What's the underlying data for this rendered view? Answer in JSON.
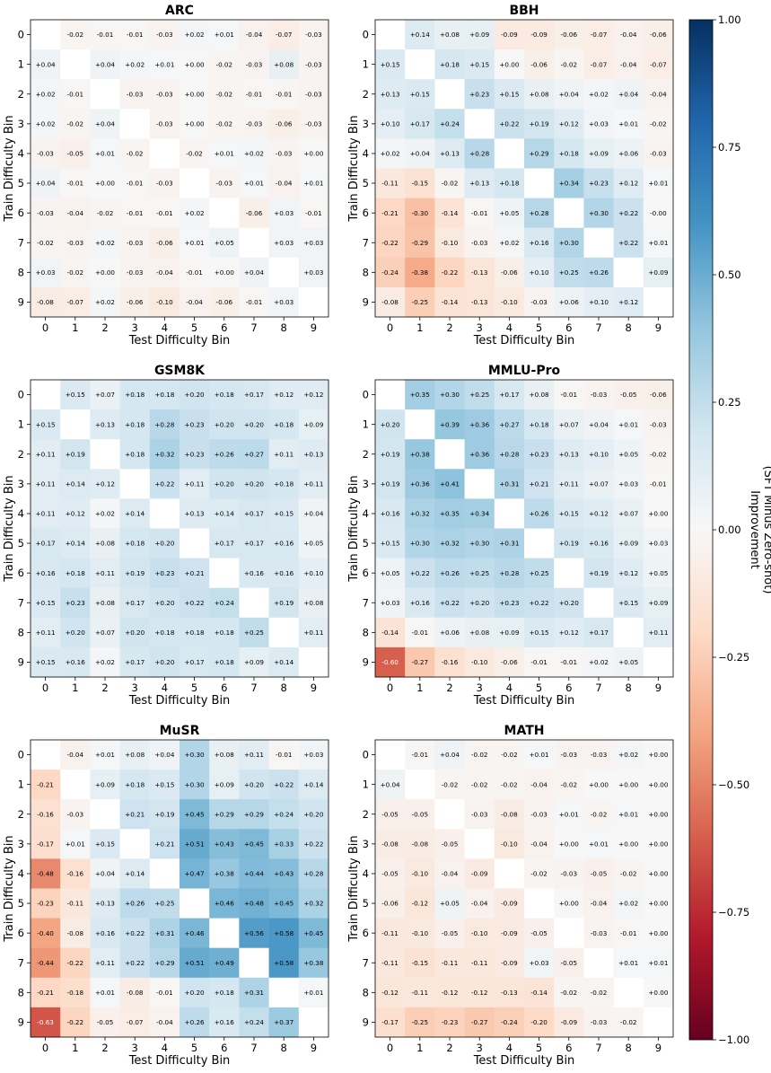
{
  "chart_data": [
    {
      "type": "heatmap",
      "title": "ARC",
      "xlabel": "Test Difficulty Bin",
      "ylabel": "Train Difficulty Bin",
      "x_ticks": [
        "0",
        "1",
        "2",
        "3",
        "4",
        "5",
        "6",
        "7",
        "8",
        "9"
      ],
      "y_ticks": [
        "0",
        "1",
        "2",
        "3",
        "4",
        "5",
        "6",
        "7",
        "8",
        "9"
      ],
      "values": [
        [
          null,
          -0.02,
          -0.01,
          -0.01,
          -0.03,
          0.02,
          0.01,
          -0.04,
          -0.07,
          -0.03
        ],
        [
          0.04,
          null,
          0.04,
          0.02,
          0.01,
          0.0,
          -0.02,
          -0.03,
          0.08,
          -0.03
        ],
        [
          0.02,
          -0.01,
          null,
          -0.03,
          -0.03,
          0.0,
          -0.02,
          -0.01,
          -0.01,
          -0.03
        ],
        [
          0.02,
          -0.02,
          0.04,
          null,
          -0.03,
          0.0,
          -0.02,
          -0.03,
          -0.06,
          -0.03
        ],
        [
          -0.03,
          -0.05,
          0.01,
          -0.02,
          null,
          -0.02,
          0.01,
          0.02,
          -0.03,
          0.0
        ],
        [
          0.04,
          -0.01,
          0.0,
          -0.01,
          -0.03,
          null,
          -0.03,
          0.01,
          -0.04,
          0.01
        ],
        [
          -0.03,
          -0.04,
          -0.02,
          -0.01,
          -0.01,
          0.02,
          null,
          -0.06,
          0.03,
          -0.01
        ],
        [
          -0.02,
          -0.03,
          0.02,
          -0.03,
          -0.06,
          0.01,
          0.05,
          null,
          0.03,
          0.03
        ],
        [
          0.03,
          -0.02,
          0.0,
          -0.03,
          -0.04,
          -0.01,
          0.0,
          0.04,
          null,
          0.03
        ],
        [
          -0.08,
          -0.07,
          0.02,
          -0.06,
          -0.1,
          -0.04,
          -0.06,
          -0.01,
          0.03,
          null
        ]
      ]
    },
    {
      "type": "heatmap",
      "title": "BBH",
      "xlabel": "Test Difficulty Bin",
      "ylabel": "Train Difficulty Bin",
      "x_ticks": [
        "0",
        "1",
        "2",
        "3",
        "4",
        "5",
        "6",
        "7",
        "8",
        "9"
      ],
      "y_ticks": [
        "0",
        "1",
        "2",
        "3",
        "4",
        "5",
        "6",
        "7",
        "8",
        "9"
      ],
      "values": [
        [
          null,
          0.14,
          0.08,
          0.09,
          -0.09,
          -0.09,
          -0.06,
          -0.07,
          -0.04,
          -0.06
        ],
        [
          0.15,
          null,
          0.18,
          0.15,
          0.0,
          -0.06,
          -0.02,
          -0.07,
          -0.04,
          -0.07
        ],
        [
          0.13,
          0.15,
          null,
          0.23,
          0.15,
          0.08,
          0.04,
          0.02,
          0.04,
          -0.04
        ],
        [
          0.1,
          0.17,
          0.24,
          null,
          0.22,
          0.19,
          0.12,
          0.03,
          0.01,
          -0.02
        ],
        [
          0.02,
          0.04,
          0.13,
          0.28,
          null,
          0.29,
          0.18,
          0.09,
          0.06,
          -0.03
        ],
        [
          -0.11,
          -0.15,
          -0.02,
          0.13,
          0.18,
          null,
          0.34,
          0.23,
          0.12,
          0.01
        ],
        [
          -0.21,
          -0.3,
          -0.14,
          -0.01,
          0.05,
          0.28,
          null,
          0.3,
          0.22,
          -0.0
        ],
        [
          -0.22,
          -0.29,
          -0.1,
          -0.03,
          0.02,
          0.16,
          0.3,
          null,
          0.22,
          0.01
        ],
        [
          -0.24,
          -0.38,
          -0.22,
          -0.13,
          -0.06,
          0.1,
          0.25,
          0.26,
          null,
          0.09
        ],
        [
          -0.08,
          -0.25,
          -0.14,
          -0.13,
          -0.1,
          -0.03,
          0.06,
          0.1,
          0.12,
          null
        ]
      ]
    },
    {
      "type": "heatmap",
      "title": "GSM8K",
      "xlabel": "Test Difficulty Bin",
      "ylabel": "Train Difficulty Bin",
      "x_ticks": [
        "0",
        "1",
        "2",
        "3",
        "4",
        "5",
        "6",
        "7",
        "8",
        "9"
      ],
      "y_ticks": [
        "0",
        "1",
        "2",
        "3",
        "4",
        "5",
        "6",
        "7",
        "8",
        "9"
      ],
      "values": [
        [
          null,
          0.15,
          0.07,
          0.18,
          0.18,
          0.2,
          0.18,
          0.17,
          0.12,
          0.12
        ],
        [
          0.15,
          null,
          0.13,
          0.18,
          0.28,
          0.23,
          0.2,
          0.2,
          0.18,
          0.09
        ],
        [
          0.11,
          0.19,
          null,
          0.18,
          0.32,
          0.23,
          0.26,
          0.27,
          0.11,
          0.13
        ],
        [
          0.11,
          0.14,
          0.12,
          null,
          0.22,
          0.11,
          0.2,
          0.2,
          0.18,
          0.11
        ],
        [
          0.11,
          0.12,
          0.02,
          0.14,
          null,
          0.13,
          0.14,
          0.17,
          0.15,
          0.04
        ],
        [
          0.17,
          0.14,
          0.08,
          0.18,
          0.2,
          null,
          0.17,
          0.17,
          0.16,
          0.05
        ],
        [
          0.16,
          0.18,
          0.11,
          0.19,
          0.23,
          0.21,
          null,
          0.16,
          0.16,
          0.1
        ],
        [
          0.15,
          0.23,
          0.08,
          0.17,
          0.2,
          0.22,
          0.24,
          null,
          0.19,
          0.08
        ],
        [
          0.11,
          0.2,
          0.07,
          0.2,
          0.18,
          0.18,
          0.18,
          0.25,
          null,
          0.11
        ],
        [
          0.15,
          0.16,
          0.02,
          0.17,
          0.2,
          0.17,
          0.18,
          0.09,
          0.14,
          null
        ]
      ]
    },
    {
      "type": "heatmap",
      "title": "MMLU-Pro",
      "xlabel": "Test Difficulty Bin",
      "ylabel": "Train Difficulty Bin",
      "x_ticks": [
        "0",
        "1",
        "2",
        "3",
        "4",
        "5",
        "6",
        "7",
        "8",
        "9"
      ],
      "y_ticks": [
        "0",
        "1",
        "2",
        "3",
        "4",
        "5",
        "6",
        "7",
        "8",
        "9"
      ],
      "values": [
        [
          null,
          0.35,
          0.3,
          0.25,
          0.17,
          0.08,
          -0.01,
          -0.03,
          -0.05,
          -0.06
        ],
        [
          0.2,
          null,
          0.39,
          0.36,
          0.27,
          0.18,
          0.07,
          0.04,
          0.01,
          -0.03
        ],
        [
          0.19,
          0.38,
          null,
          0.36,
          0.28,
          0.23,
          0.13,
          0.1,
          0.05,
          -0.02
        ],
        [
          0.19,
          0.36,
          0.41,
          null,
          0.31,
          0.21,
          0.11,
          0.07,
          0.03,
          -0.01
        ],
        [
          0.16,
          0.32,
          0.35,
          0.34,
          null,
          0.26,
          0.15,
          0.12,
          0.07,
          0.0
        ],
        [
          0.15,
          0.3,
          0.32,
          0.3,
          0.31,
          null,
          0.19,
          0.16,
          0.09,
          0.03
        ],
        [
          0.05,
          0.22,
          0.26,
          0.25,
          0.28,
          0.25,
          null,
          0.19,
          0.12,
          0.05
        ],
        [
          0.03,
          0.16,
          0.22,
          0.2,
          0.23,
          0.22,
          0.2,
          null,
          0.15,
          0.09
        ],
        [
          -0.14,
          -0.01,
          0.06,
          0.08,
          0.09,
          0.15,
          0.12,
          0.17,
          null,
          0.11
        ],
        [
          -0.6,
          -0.27,
          -0.16,
          -0.1,
          -0.06,
          -0.01,
          -0.01,
          0.02,
          0.05,
          null
        ]
      ]
    },
    {
      "type": "heatmap",
      "title": "MuSR",
      "xlabel": "Test Difficulty Bin",
      "ylabel": "Train Difficulty Bin",
      "x_ticks": [
        "0",
        "1",
        "2",
        "3",
        "4",
        "5",
        "6",
        "7",
        "8",
        "9"
      ],
      "y_ticks": [
        "0",
        "1",
        "2",
        "3",
        "4",
        "5",
        "6",
        "7",
        "8",
        "9"
      ],
      "values": [
        [
          null,
          -0.04,
          0.01,
          0.08,
          0.04,
          0.3,
          0.08,
          0.11,
          -0.01,
          0.03
        ],
        [
          -0.21,
          null,
          0.09,
          0.18,
          0.15,
          0.3,
          0.09,
          0.2,
          0.22,
          0.14
        ],
        [
          -0.16,
          -0.03,
          null,
          0.21,
          0.19,
          0.45,
          0.29,
          0.29,
          0.24,
          0.2
        ],
        [
          -0.17,
          0.01,
          0.15,
          null,
          0.21,
          0.51,
          0.43,
          0.45,
          0.33,
          0.22
        ],
        [
          -0.48,
          -0.16,
          0.04,
          0.14,
          null,
          0.47,
          0.38,
          0.44,
          0.43,
          0.28
        ],
        [
          -0.23,
          -0.11,
          0.13,
          0.26,
          0.25,
          null,
          0.46,
          0.48,
          0.45,
          0.32
        ],
        [
          -0.4,
          -0.08,
          0.16,
          0.22,
          0.31,
          0.46,
          null,
          0.56,
          0.58,
          0.45
        ],
        [
          -0.44,
          -0.22,
          0.11,
          0.22,
          0.29,
          0.51,
          0.49,
          null,
          0.58,
          0.38
        ],
        [
          -0.21,
          -0.18,
          0.01,
          -0.08,
          -0.01,
          0.2,
          0.18,
          0.31,
          null,
          0.01
        ],
        [
          -0.63,
          -0.22,
          -0.05,
          -0.07,
          -0.04,
          0.26,
          0.16,
          0.24,
          0.37,
          null
        ]
      ]
    },
    {
      "type": "heatmap",
      "title": "MATH",
      "xlabel": "Test Difficulty Bin",
      "ylabel": "Train Difficulty Bin",
      "x_ticks": [
        "0",
        "1",
        "2",
        "3",
        "4",
        "5",
        "6",
        "7",
        "8",
        "9"
      ],
      "y_ticks": [
        "0",
        "1",
        "2",
        "3",
        "4",
        "5",
        "6",
        "7",
        "8",
        "9"
      ],
      "values": [
        [
          null,
          -0.01,
          0.04,
          -0.02,
          -0.02,
          0.01,
          -0.03,
          -0.03,
          0.02,
          0.0
        ],
        [
          0.04,
          null,
          -0.02,
          -0.02,
          -0.02,
          -0.04,
          -0.02,
          0.0,
          0.0,
          0.0
        ],
        [
          -0.05,
          -0.05,
          null,
          -0.03,
          -0.08,
          -0.03,
          0.01,
          -0.02,
          0.01,
          0.0
        ],
        [
          -0.08,
          -0.08,
          -0.05,
          null,
          -0.1,
          -0.04,
          0.0,
          0.01,
          0.0,
          0.0
        ],
        [
          -0.05,
          -0.1,
          -0.04,
          -0.09,
          null,
          -0.02,
          -0.03,
          -0.05,
          -0.02,
          0.0
        ],
        [
          -0.06,
          -0.12,
          0.05,
          -0.04,
          -0.09,
          null,
          0.0,
          -0.04,
          0.02,
          0.0
        ],
        [
          -0.11,
          -0.1,
          -0.05,
          -0.1,
          -0.09,
          -0.05,
          null,
          -0.03,
          -0.01,
          0.0
        ],
        [
          -0.11,
          -0.15,
          -0.11,
          -0.11,
          -0.09,
          0.03,
          -0.05,
          null,
          0.01,
          0.01
        ],
        [
          -0.12,
          -0.11,
          -0.12,
          -0.12,
          -0.13,
          -0.14,
          -0.02,
          -0.02,
          null,
          0.0
        ],
        [
          -0.17,
          -0.25,
          -0.23,
          -0.27,
          -0.24,
          -0.2,
          -0.09,
          -0.03,
          -0.02,
          null
        ]
      ]
    }
  ],
  "colorbar": {
    "label_line1": "Improvement",
    "label_line2": "(SFT Minus Zero-shot)",
    "range": [
      -1.0,
      1.0
    ],
    "ticks": [
      "1.00",
      "0.75",
      "0.50",
      "0.25",
      "0.00",
      "−0.25",
      "−0.50",
      "−0.75",
      "−1.00"
    ],
    "tick_values": [
      1.0,
      0.75,
      0.5,
      0.25,
      0.0,
      -0.25,
      -0.5,
      -0.75,
      -1.0
    ],
    "colormap": "RdBu"
  }
}
